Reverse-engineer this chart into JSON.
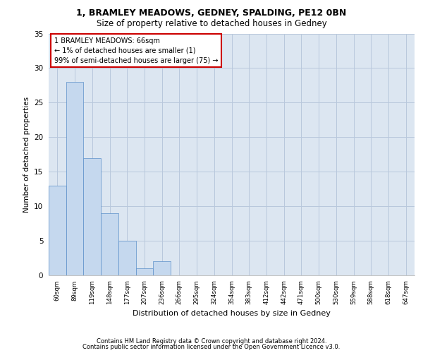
{
  "title_line1": "1, BRAMLEY MEADOWS, GEDNEY, SPALDING, PE12 0BN",
  "title_line2": "Size of property relative to detached houses in Gedney",
  "xlabel": "Distribution of detached houses by size in Gedney",
  "ylabel": "Number of detached properties",
  "categories": [
    "60sqm",
    "89sqm",
    "119sqm",
    "148sqm",
    "177sqm",
    "207sqm",
    "236sqm",
    "266sqm",
    "295sqm",
    "324sqm",
    "354sqm",
    "383sqm",
    "412sqm",
    "442sqm",
    "471sqm",
    "500sqm",
    "530sqm",
    "559sqm",
    "588sqm",
    "618sqm",
    "647sqm"
  ],
  "values": [
    13,
    28,
    17,
    9,
    5,
    1,
    2,
    0,
    0,
    0,
    0,
    0,
    0,
    0,
    0,
    0,
    0,
    0,
    0,
    0,
    0
  ],
  "bar_color": "#c5d8ee",
  "bar_edge_color": "#5b8fc9",
  "ylim": [
    0,
    35
  ],
  "yticks": [
    0,
    5,
    10,
    15,
    20,
    25,
    30,
    35
  ],
  "grid_color": "#b8c8dc",
  "background_color": "#dce6f1",
  "annotation_title": "1 BRAMLEY MEADOWS: 66sqm",
  "annotation_line2": "← 1% of detached houses are smaller (1)",
  "annotation_line3": "99% of semi-detached houses are larger (75) →",
  "annotation_box_color": "#ffffff",
  "annotation_edge_color": "#cc0000",
  "footer_line1": "Contains HM Land Registry data © Crown copyright and database right 2024.",
  "footer_line2": "Contains public sector information licensed under the Open Government Licence v3.0."
}
